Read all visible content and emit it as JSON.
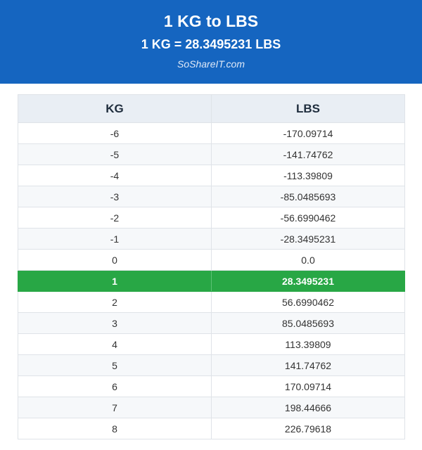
{
  "header": {
    "title": "1 KG to LBS",
    "subtitle": "1 KG = 28.3495231 LBS",
    "site": "SoShareIT.com"
  },
  "table": {
    "columns": [
      "KG",
      "LBS"
    ],
    "highlight_row": 7,
    "rows": [
      {
        "kg": "-6",
        "lbs": "-170.09714"
      },
      {
        "kg": "-5",
        "lbs": "-141.74762"
      },
      {
        "kg": "-4",
        "lbs": "-113.39809"
      },
      {
        "kg": "-3",
        "lbs": "-85.0485693"
      },
      {
        "kg": "-2",
        "lbs": "-56.6990462"
      },
      {
        "kg": "-1",
        "lbs": "-28.3495231"
      },
      {
        "kg": "0",
        "lbs": "0.0"
      },
      {
        "kg": "1",
        "lbs": "28.3495231"
      },
      {
        "kg": "2",
        "lbs": "56.6990462"
      },
      {
        "kg": "3",
        "lbs": "85.0485693"
      },
      {
        "kg": "4",
        "lbs": "113.39809"
      },
      {
        "kg": "5",
        "lbs": "141.74762"
      },
      {
        "kg": "6",
        "lbs": "170.09714"
      },
      {
        "kg": "7",
        "lbs": "198.44666"
      },
      {
        "kg": "8",
        "lbs": "226.79618"
      }
    ]
  },
  "colors": {
    "header_bg": "#1565c0",
    "highlight_bg": "#28a745"
  }
}
